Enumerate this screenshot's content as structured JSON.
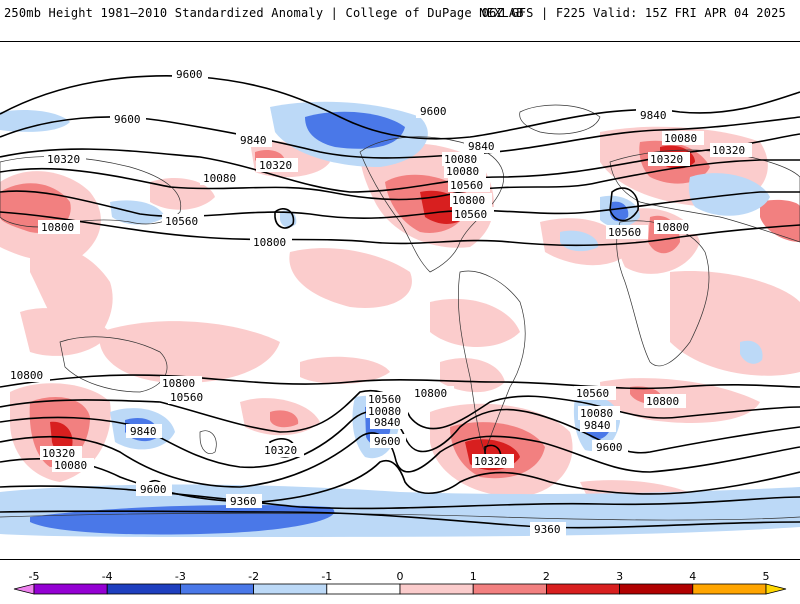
{
  "header": {
    "left_title": "250mb Height 1981–2010 Standardized Anomaly | College of DuPage NEXLAB",
    "right_title": "06Z GFS | F225 Valid: 15Z FRI APR 04 2025"
  },
  "map": {
    "contour_labels": {
      "n1": "9600",
      "n2": "9600",
      "n3": "9840",
      "n4": "10080",
      "n5": "10560",
      "n6": "10800",
      "n7": "10320",
      "n8": "10320",
      "n9": "10080",
      "n10": "10560",
      "n11": "10800",
      "n12": "9600",
      "n13": "9840",
      "n14": "10080",
      "n15": "10320",
      "n16": "10560",
      "n17": "10800",
      "n18": "9840",
      "n19": "10080",
      "n20": "10560",
      "n21": "10800",
      "n22": "10320",
      "s1": "10800",
      "s2": "10800",
      "s3": "10560",
      "s4": "10320",
      "s5": "10080",
      "s6": "9840",
      "s7": "10320",
      "s8": "9600",
      "s9": "9360",
      "s10": "10560",
      "s11": "10080",
      "s12": "9840",
      "s13": "9600",
      "s14": "10800",
      "s15": "10320",
      "s16": "9360",
      "s17": "10560",
      "s18": "10080",
      "s19": "9840",
      "s20": "9600",
      "s21": "10800"
    }
  },
  "colorbar": {
    "ticks": [
      "-5",
      "-4",
      "-3",
      "-2",
      "-1",
      "0",
      "1",
      "2",
      "3",
      "4",
      "5"
    ],
    "colors": [
      "#ee82ee",
      "#9400d3",
      "#1e3fbf",
      "#4a78e8",
      "#bcd9f7",
      "#ffffff",
      "#fbcccc",
      "#f28080",
      "#d81f1f",
      "#b00000",
      "#ffa500",
      "#ffd700"
    ]
  }
}
